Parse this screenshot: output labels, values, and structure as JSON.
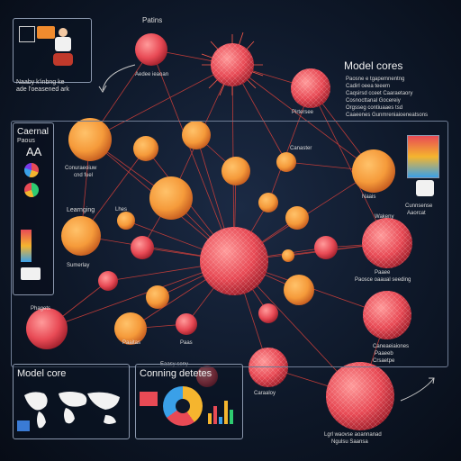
{
  "colors": {
    "background": "#0b1220",
    "orange": "#f59a3a",
    "red": "#e84a55",
    "panel_border": "#8a97ad",
    "link": "#d9413a"
  },
  "top_left_panel": {
    "caption_1": "Naaby k'inbng ke",
    "caption_2": "ade l'oeasened ark"
  },
  "top_labels": {
    "patins": "Patins",
    "node_top_small": "Aedee ieaoan",
    "node_top_mid": "Pirtersee"
  },
  "model_cores_panel": {
    "title": "Model cores",
    "items": [
      "Paosne e tgapemnentng",
      "Cadirl oeea teeem",
      "Caqsirsd cceet Caaraetaory",
      "Cosnocttanal Gocereiy",
      "Orgsseg contiuaaes tsd",
      "Caaeenes Gunmreniaioeneatsons"
    ]
  },
  "left_panel": {
    "title_1": "Caernal",
    "title_2": "Paous",
    "title_3": "AA",
    "label_learning": "Learnging",
    "label_similarity": "Sumerlay",
    "label_phagets": "Phagets"
  },
  "node_labels": {
    "conuraeoiuw": "Conuraeoiuw",
    "cnd_fuel": "cnd fuel",
    "lhes": "Lhes",
    "cansatie": "Canaster",
    "naais": "Naais",
    "cunnsense": "Cunnsense",
    "aaorcat": "Aaorcat",
    "wakeny": "Wakeny",
    "pasee": "Paaee",
    "pacsecs": "Paosce oaaual seeding",
    "paeitas": "Paaitas",
    "pas": "Paas",
    "coaner": "Caraaloy",
    "canaasiiones": "Caneaeiaiones",
    "paaeeb": "Paaeeb",
    "crsaetpe": "Crsaetpe",
    "eaeay": "Eaasy seny",
    "bottom_right_1": "Lgrl waovse aoannanad",
    "bottom_right_2": "Ngulsu Saansa"
  },
  "bottom_panels": {
    "model_core_title": "Model core",
    "coming_title": "Conning detetes"
  }
}
